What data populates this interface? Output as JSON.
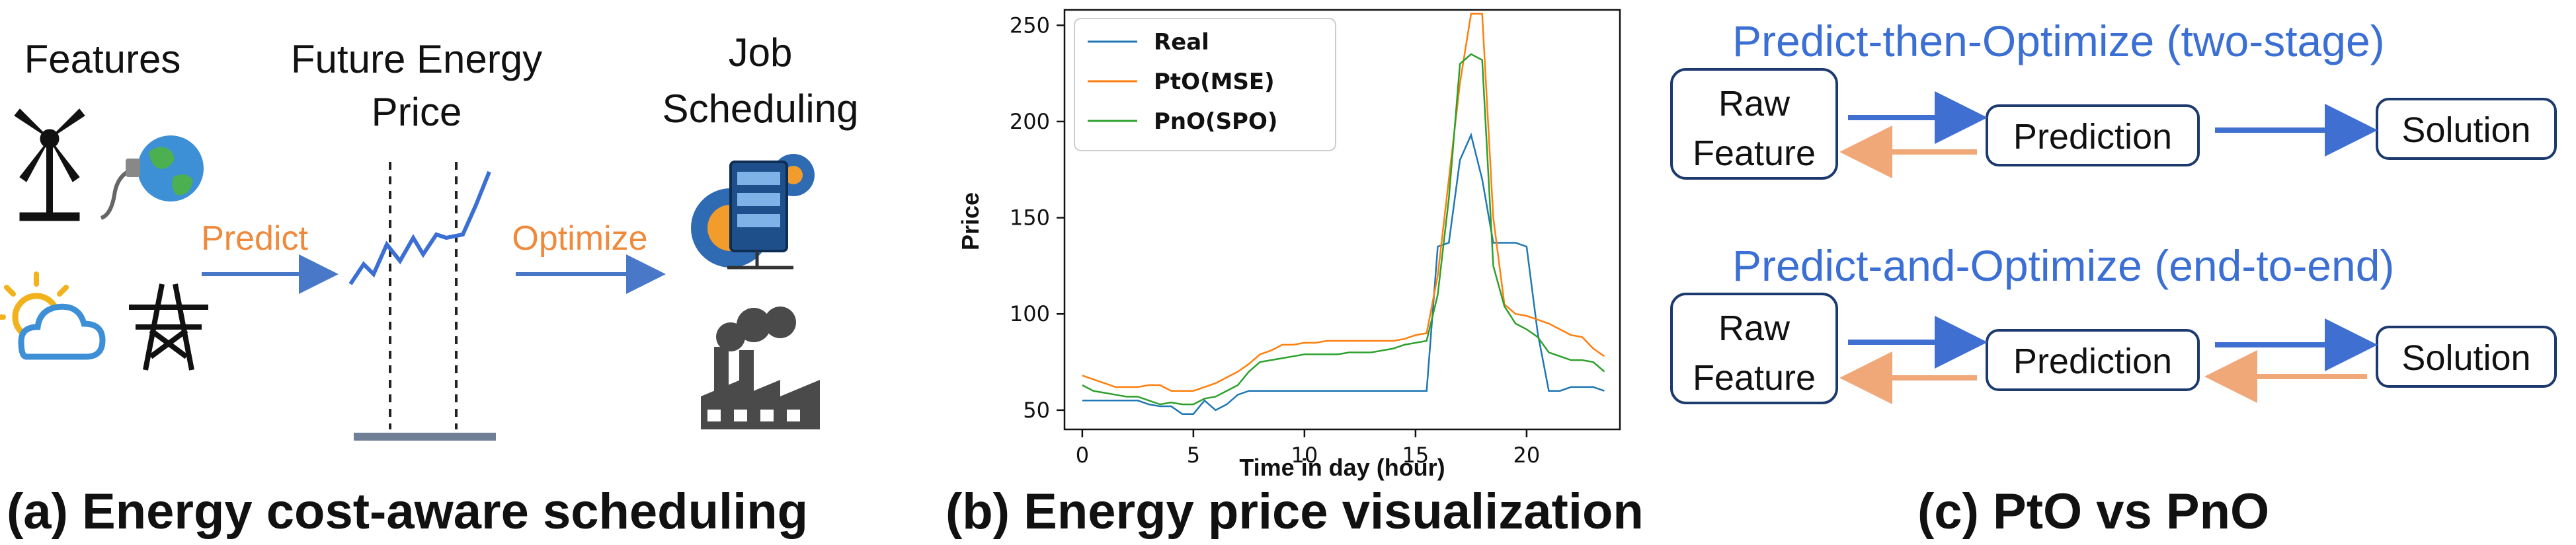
{
  "panel_a": {
    "caption": "(a) Energy cost-aware scheduling",
    "features_label": "Features",
    "price_label_line1": "Future Energy",
    "price_label_line2": "Price",
    "job_label_line1": "Job",
    "job_label_line2": "Scheduling",
    "predict_label": "Predict",
    "optimize_label": "Optimize",
    "icons": [
      "wind-turbine-icon",
      "globe-plug-icon",
      "sun-cloud-icon",
      "power-tower-icon",
      "server-gear-icon",
      "factory-icon"
    ],
    "colors": {
      "arrow": "#4a78c9",
      "text_orange": "#ef8a3c",
      "icon_blue": "#2f6bb3",
      "icon_orange": "#f29d2b"
    }
  },
  "panel_b": {
    "caption": "(b) Energy price visualization"
  },
  "panel_c": {
    "caption": "(c) PtO vs PnO",
    "top_title": "Predict-then-Optimize (two-stage)",
    "bottom_title": "Predict-and-Optimize (end-to-end)",
    "raw_line1": "Raw",
    "raw_line2": "Feature",
    "prediction": "Prediction",
    "solution": "Solution",
    "colors": {
      "title": "#3b6fd4",
      "forward_arrow": "#3f6fd0",
      "backward_arrow": "#f0a878"
    }
  },
  "chart_data": {
    "type": "line",
    "title": "",
    "xlabel": "Time in day (hour)",
    "ylabel": "Price",
    "xlim": [
      -0.8,
      24.2
    ],
    "ylim": [
      40,
      258
    ],
    "xticks": [
      0,
      5,
      10,
      15,
      20
    ],
    "yticks": [
      50,
      100,
      150,
      200,
      250
    ],
    "legend_position": "top-left",
    "grid": false,
    "x": [
      0,
      0.5,
      1,
      1.5,
      2,
      2.5,
      3,
      3.5,
      4,
      4.5,
      5,
      5.5,
      6,
      6.5,
      7,
      7.5,
      8,
      8.5,
      9,
      9.5,
      10,
      10.5,
      11,
      11.5,
      12,
      12.5,
      13,
      13.5,
      14,
      14.5,
      15,
      15.5,
      16,
      16.5,
      17,
      17.5,
      18,
      18.5,
      19,
      19.5,
      20,
      20.5,
      21,
      21.5,
      22,
      22.5,
      23,
      23.5
    ],
    "series": [
      {
        "name": "Real",
        "color": "#1f77b4",
        "values": [
          55,
          55,
          55,
          55,
          55,
          55,
          53,
          52,
          52,
          48,
          48,
          55,
          50,
          53,
          58,
          60,
          60,
          60,
          60,
          60,
          60,
          60,
          60,
          60,
          60,
          60,
          60,
          60,
          60,
          60,
          60,
          60,
          135,
          137,
          180,
          193,
          170,
          137,
          137,
          137,
          135,
          90,
          60,
          60,
          62,
          62,
          62,
          60
        ]
      },
      {
        "name": "PtO(MSE)",
        "color": "#ff7f0e",
        "values": [
          68,
          66,
          64,
          62,
          62,
          62,
          63,
          63,
          60,
          60,
          60,
          62,
          64,
          67,
          70,
          74,
          79,
          81,
          84,
          84,
          85,
          85,
          86,
          86,
          86,
          86,
          86,
          86,
          86,
          87,
          89,
          90,
          120,
          170,
          220,
          256,
          256,
          150,
          105,
          100,
          99,
          97,
          95,
          92,
          89,
          88,
          82,
          78
        ]
      },
      {
        "name": "PnO(SPO)",
        "color": "#2ca02c",
        "values": [
          63,
          60,
          59,
          58,
          57,
          57,
          55,
          53,
          54,
          53,
          53,
          56,
          57,
          60,
          63,
          70,
          75,
          76,
          77,
          78,
          79,
          79,
          79,
          79,
          80,
          80,
          80,
          81,
          82,
          84,
          85,
          86,
          110,
          160,
          230,
          235,
          232,
          125,
          104,
          95,
          92,
          88,
          80,
          78,
          76,
          76,
          75,
          70
        ]
      }
    ]
  }
}
